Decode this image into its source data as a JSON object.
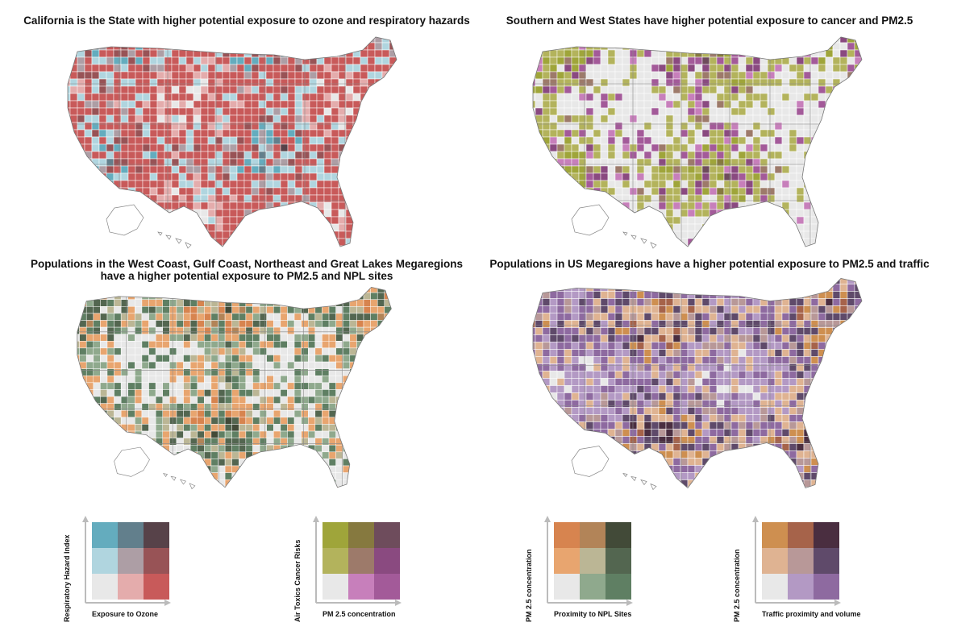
{
  "maps": [
    {
      "title_lines": [
        "California is the State with higher potential exposure to ozone and respiratory hazards"
      ],
      "palette": [
        "#e8e8e8",
        "#e4acac",
        "#c85a5a",
        "#b0d5df",
        "#ad9ea5",
        "#985356",
        "#64acbe",
        "#627f8c",
        "#574249"
      ],
      "weights": [
        0.14,
        0.12,
        0.32,
        0.12,
        0.05,
        0.08,
        0.1,
        0.03,
        0.04
      ]
    },
    {
      "title_lines": [
        "Southern and West States have higher potential exposure to cancer and PM2.5"
      ],
      "palette": [
        "#e8e8e8",
        "#c77fbb",
        "#a35a99",
        "#b3b35c",
        "#9d7a6a",
        "#8a4a80",
        "#9fa53a",
        "#86793f",
        "#6e4c5c"
      ],
      "weights": [
        0.45,
        0.04,
        0.04,
        0.18,
        0.03,
        0.05,
        0.12,
        0.04,
        0.05
      ]
    },
    {
      "title_lines": [
        "Populations in the West Coast, Gulf Coast, Northeast and Great Lakes Megaregions",
        "have a higher potential exposure to PM2.5 and NPL sites"
      ],
      "palette": [
        "#e8e8e8",
        "#8fa98d",
        "#5f7f63",
        "#e8a56f",
        "#bbb695",
        "#536650",
        "#d7844f",
        "#b28458",
        "#424a38"
      ],
      "weights": [
        0.38,
        0.08,
        0.1,
        0.14,
        0.05,
        0.1,
        0.05,
        0.03,
        0.07
      ]
    },
    {
      "title_lines": [
        "Populations in US Megaregions have a higher potential exposure to PM2.5 and traffic"
      ],
      "palette": [
        "#e8e8e8",
        "#b399c4",
        "#8e6aa0",
        "#dfb392",
        "#b89898",
        "#5f4a6a",
        "#ce8f50",
        "#a6634a",
        "#4a2e40"
      ],
      "weights": [
        0.12,
        0.22,
        0.16,
        0.12,
        0.06,
        0.1,
        0.08,
        0.05,
        0.09
      ]
    }
  ],
  "legends": [
    {
      "y_label": "Respiratory Hazard Index",
      "x_label": "Exposure to Ozone",
      "colors": [
        "#64acbe",
        "#627f8c",
        "#574249",
        "#b0d5df",
        "#ad9ea5",
        "#985356",
        "#e8e8e8",
        "#e4acac",
        "#c85a5a"
      ]
    },
    {
      "y_label": "Air Toxics Cancer Risks",
      "x_label": "PM 2.5 concentration",
      "colors": [
        "#9fa53a",
        "#86793f",
        "#6e4c5c",
        "#b3b35c",
        "#9d7a6a",
        "#8a4a80",
        "#e8e8e8",
        "#c77fbb",
        "#a35a99"
      ]
    },
    {
      "y_label": "PM 2.5 concentration",
      "x_label": "Proximity to NPL Sites",
      "colors": [
        "#d7844f",
        "#b28458",
        "#424a38",
        "#e8a56f",
        "#bbb695",
        "#536650",
        "#e8e8e8",
        "#8fa98d",
        "#5f7f63"
      ]
    },
    {
      "y_label": "PM 2.5 concentration",
      "x_label": "Traffic proximity and volume",
      "colors": [
        "#ce8f50",
        "#a6634a",
        "#4a2e40",
        "#dfb392",
        "#b89898",
        "#5f4a6a",
        "#e8e8e8",
        "#b399c4",
        "#8e6aa0"
      ]
    }
  ]
}
